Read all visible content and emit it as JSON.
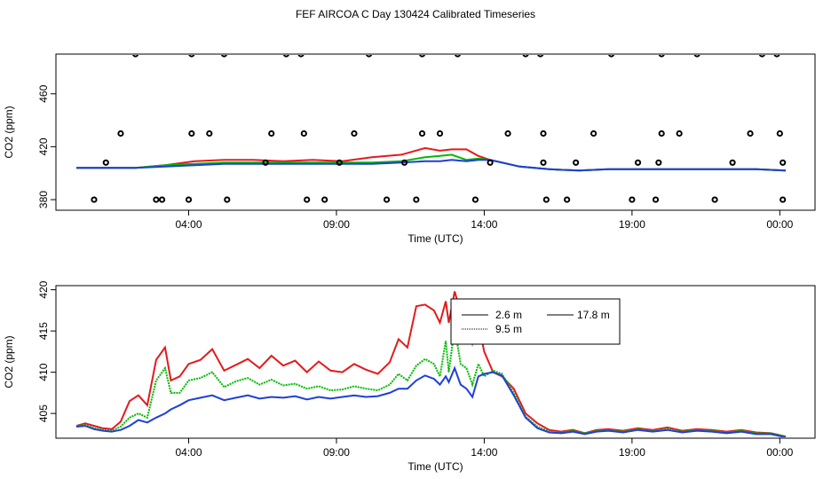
{
  "title": "FEF AIRCOA C  Day 130424  Calibrated Timeseries",
  "chart_data": [
    {
      "type": "scatter",
      "id": "top",
      "xlabel": "Time (UTC)",
      "ylabel": "CO2 (ppm)",
      "xlim": [
        0,
        24
      ],
      "ylim": [
        372,
        490
      ],
      "x_ticks": [
        {
          "v": 3.8,
          "label": "04:00"
        },
        {
          "v": 8.8,
          "label": "09:00"
        },
        {
          "v": 13.8,
          "label": "14:00"
        },
        {
          "v": 18.8,
          "label": "19:00"
        },
        {
          "v": 23.8,
          "label": "00:00"
        }
      ],
      "y_ticks": [
        380,
        420,
        460
      ],
      "points": [
        [
          0.6,
          380
        ],
        [
          1.0,
          408
        ],
        [
          1.5,
          430
        ],
        [
          2.0,
          490
        ],
        [
          2.7,
          380
        ],
        [
          2.9,
          380
        ],
        [
          3.8,
          380
        ],
        [
          3.9,
          430
        ],
        [
          3.9,
          490
        ],
        [
          4.5,
          430
        ],
        [
          5.0,
          490
        ],
        [
          5.1,
          380
        ],
        [
          6.4,
          408
        ],
        [
          6.6,
          430
        ],
        [
          7.1,
          490
        ],
        [
          7.6,
          490
        ],
        [
          7.7,
          430
        ],
        [
          7.8,
          380
        ],
        [
          8.4,
          380
        ],
        [
          8.9,
          408
        ],
        [
          9.4,
          430
        ],
        [
          9.9,
          490
        ],
        [
          10.5,
          380
        ],
        [
          11.1,
          408
        ],
        [
          11.5,
          380
        ],
        [
          11.7,
          430
        ],
        [
          11.7,
          490
        ],
        [
          12.3,
          430
        ],
        [
          12.9,
          490
        ],
        [
          13.5,
          380
        ],
        [
          14.0,
          408
        ],
        [
          14.6,
          430
        ],
        [
          15.2,
          490
        ],
        [
          15.7,
          490
        ],
        [
          15.8,
          430
        ],
        [
          15.8,
          408
        ],
        [
          15.9,
          380
        ],
        [
          16.6,
          380
        ],
        [
          16.9,
          408
        ],
        [
          17.5,
          430
        ],
        [
          18.1,
          490
        ],
        [
          18.8,
          380
        ],
        [
          19.0,
          408
        ],
        [
          19.6,
          380
        ],
        [
          19.7,
          408
        ],
        [
          19.8,
          430
        ],
        [
          19.8,
          490
        ],
        [
          20.4,
          430
        ],
        [
          21.0,
          490
        ],
        [
          21.6,
          380
        ],
        [
          22.2,
          408
        ],
        [
          22.8,
          430
        ],
        [
          23.2,
          490
        ],
        [
          23.7,
          490
        ],
        [
          23.8,
          430
        ],
        [
          23.9,
          408
        ],
        [
          23.9,
          380
        ]
      ],
      "series": [
        {
          "name": "2.6 m",
          "color": "#e41a1c",
          "x": [
            0,
            1,
            2,
            3,
            4,
            5,
            6,
            7,
            8,
            9,
            10,
            11,
            11.8,
            12.3,
            12.7,
            13.2,
            13.6,
            14.0,
            15,
            16,
            17,
            18,
            19,
            20,
            21,
            22,
            23,
            24
          ],
          "y": [
            404,
            404,
            404,
            406,
            409,
            410,
            410,
            409,
            410,
            409,
            412,
            414,
            419,
            417,
            418,
            418,
            413,
            410,
            405,
            403,
            402,
            403,
            403,
            403,
            403,
            403,
            403,
            402
          ]
        },
        {
          "name": "9.5 m",
          "color": "#00bb00",
          "x": [
            0,
            1,
            2,
            3,
            4,
            5,
            6,
            7,
            8,
            9,
            10,
            11,
            11.8,
            12.3,
            12.7,
            13.2,
            13.6,
            14.0,
            15,
            16,
            17,
            18,
            19,
            20,
            21,
            22,
            23,
            24
          ],
          "y": [
            404,
            404,
            404,
            406,
            407,
            408,
            408,
            408,
            408,
            408,
            408,
            409,
            412,
            413,
            414,
            410,
            411,
            410,
            405,
            403,
            402,
            403,
            403,
            403,
            403,
            403,
            403,
            402
          ]
        },
        {
          "name": "17.8 m",
          "color": "#1f3fd6",
          "x": [
            0,
            1,
            2,
            3,
            4,
            5,
            6,
            7,
            8,
            9,
            10,
            11,
            11.8,
            12.3,
            12.7,
            13.2,
            13.6,
            14.0,
            15,
            16,
            17,
            18,
            19,
            20,
            21,
            22,
            23,
            24
          ],
          "y": [
            404,
            404,
            404,
            405,
            406,
            407,
            407,
            407,
            407,
            407,
            407,
            408,
            409,
            409,
            410,
            409,
            410,
            410,
            405,
            403,
            402,
            403,
            403,
            403,
            403,
            403,
            403,
            402
          ]
        }
      ]
    },
    {
      "type": "line",
      "id": "bottom",
      "xlabel": "Time (UTC)",
      "ylabel": "CO2 (ppm)",
      "xlim": [
        0,
        24
      ],
      "ylim": [
        402,
        420.5
      ],
      "x_ticks": [
        {
          "v": 3.8,
          "label": "04:00"
        },
        {
          "v": 8.8,
          "label": "09:00"
        },
        {
          "v": 13.8,
          "label": "14:00"
        },
        {
          "v": 18.8,
          "label": "19:00"
        },
        {
          "v": 23.8,
          "label": "00:00"
        }
      ],
      "y_ticks": [
        405,
        410,
        415,
        420
      ],
      "legend": {
        "position": "top-center",
        "entries": [
          "2.6 m",
          "9.5 m",
          "17.8 m"
        ]
      },
      "series": [
        {
          "name": "2.6 m",
          "color": "#e41a1c",
          "x": [
            0.0,
            0.3,
            0.6,
            0.9,
            1.2,
            1.5,
            1.8,
            2.1,
            2.4,
            2.7,
            3.0,
            3.2,
            3.5,
            3.8,
            4.2,
            4.6,
            5.0,
            5.4,
            5.8,
            6.2,
            6.6,
            7.0,
            7.4,
            7.8,
            8.2,
            8.6,
            9.0,
            9.4,
            9.8,
            10.2,
            10.6,
            10.9,
            11.2,
            11.5,
            11.8,
            12.1,
            12.3,
            12.5,
            12.6,
            12.8,
            13.0,
            13.2,
            13.4,
            13.6,
            13.8,
            14.1,
            14.4,
            14.8,
            15.2,
            15.6,
            16.0,
            16.4,
            16.8,
            17.2,
            17.6,
            18.0,
            18.5,
            19.0,
            19.5,
            20.0,
            20.5,
            21.0,
            21.5,
            22.0,
            22.5,
            23.0,
            23.5,
            24.0
          ],
          "y": [
            403.5,
            403.8,
            403.5,
            403.2,
            403.1,
            404.0,
            406.5,
            407.2,
            406.0,
            411.5,
            413.0,
            409.0,
            409.5,
            411.0,
            411.5,
            412.8,
            410.2,
            410.9,
            411.6,
            410.5,
            412.0,
            410.8,
            411.4,
            410.0,
            411.3,
            410.2,
            410.0,
            411.0,
            410.3,
            409.8,
            411.2,
            414.0,
            413.0,
            418.0,
            418.2,
            417.5,
            416.0,
            418.6,
            416.0,
            419.8,
            417.2,
            416.5,
            413.5,
            416.0,
            412.5,
            410.0,
            409.5,
            408.0,
            405.0,
            403.8,
            403.0,
            402.8,
            403.0,
            402.6,
            403.0,
            403.1,
            402.9,
            403.2,
            403.0,
            403.3,
            402.9,
            403.1,
            403.0,
            402.8,
            403.0,
            402.7,
            402.6,
            402.2
          ]
        },
        {
          "name": "9.5 m",
          "color": "#00bb00",
          "x": [
            0.0,
            0.3,
            0.6,
            0.9,
            1.2,
            1.5,
            1.8,
            2.1,
            2.4,
            2.7,
            3.0,
            3.2,
            3.5,
            3.8,
            4.2,
            4.6,
            5.0,
            5.4,
            5.8,
            6.2,
            6.6,
            7.0,
            7.4,
            7.8,
            8.2,
            8.6,
            9.0,
            9.4,
            9.8,
            10.2,
            10.6,
            10.9,
            11.2,
            11.5,
            11.8,
            12.1,
            12.3,
            12.5,
            12.6,
            12.8,
            13.0,
            13.2,
            13.4,
            13.6,
            13.8,
            14.1,
            14.4,
            14.8,
            15.2,
            15.6,
            16.0,
            16.4,
            16.8,
            17.2,
            17.6,
            18.0,
            18.5,
            19.0,
            19.5,
            20.0,
            20.5,
            21.0,
            21.5,
            22.0,
            22.5,
            23.0,
            23.5,
            24.0
          ],
          "y": [
            403.5,
            403.6,
            403.2,
            403.0,
            402.9,
            403.4,
            404.5,
            405.0,
            404.5,
            409.0,
            410.5,
            407.5,
            407.5,
            409.0,
            409.3,
            410.0,
            408.2,
            408.9,
            409.3,
            408.5,
            409.1,
            408.4,
            408.6,
            408.0,
            408.3,
            407.8,
            407.9,
            408.3,
            408.0,
            407.8,
            408.5,
            409.8,
            409.0,
            410.8,
            411.6,
            411.0,
            409.5,
            413.8,
            410.0,
            415.5,
            411.0,
            410.5,
            408.5,
            411.0,
            409.5,
            410.2,
            409.8,
            407.5,
            404.6,
            403.4,
            402.8,
            402.7,
            402.9,
            402.6,
            402.9,
            403.0,
            402.8,
            403.1,
            402.9,
            403.1,
            402.8,
            403.0,
            402.9,
            402.7,
            402.9,
            402.6,
            402.6,
            402.2
          ]
        },
        {
          "name": "17.8 m",
          "color": "#1f3fd6",
          "x": [
            0.0,
            0.3,
            0.6,
            0.9,
            1.2,
            1.5,
            1.8,
            2.1,
            2.4,
            2.7,
            3.0,
            3.2,
            3.5,
            3.8,
            4.2,
            4.6,
            5.0,
            5.4,
            5.8,
            6.2,
            6.6,
            7.0,
            7.4,
            7.8,
            8.2,
            8.6,
            9.0,
            9.4,
            9.8,
            10.2,
            10.6,
            10.9,
            11.2,
            11.5,
            11.8,
            12.1,
            12.3,
            12.5,
            12.6,
            12.8,
            13.0,
            13.2,
            13.4,
            13.6,
            13.8,
            14.1,
            14.4,
            14.8,
            15.2,
            15.6,
            16.0,
            16.4,
            16.8,
            17.2,
            17.6,
            18.0,
            18.5,
            19.0,
            19.5,
            20.0,
            20.5,
            21.0,
            21.5,
            22.0,
            22.5,
            23.0,
            23.5,
            24.0
          ],
          "y": [
            403.4,
            403.5,
            403.1,
            402.9,
            402.8,
            403.0,
            403.5,
            404.2,
            403.9,
            404.5,
            405.0,
            405.5,
            406.0,
            406.6,
            406.9,
            407.2,
            406.6,
            406.9,
            407.2,
            406.8,
            407.0,
            406.9,
            407.1,
            406.7,
            407.0,
            406.8,
            407.0,
            407.2,
            407.0,
            407.1,
            407.5,
            408.0,
            408.0,
            409.0,
            409.6,
            409.2,
            408.5,
            409.5,
            408.8,
            410.5,
            408.5,
            408.0,
            407.0,
            409.5,
            409.8,
            410.0,
            409.6,
            407.2,
            404.5,
            403.2,
            402.7,
            402.6,
            402.8,
            402.5,
            402.8,
            402.9,
            402.7,
            403.0,
            402.8,
            403.0,
            402.7,
            402.9,
            402.8,
            402.6,
            402.8,
            402.5,
            402.5,
            402.1
          ]
        }
      ]
    }
  ]
}
